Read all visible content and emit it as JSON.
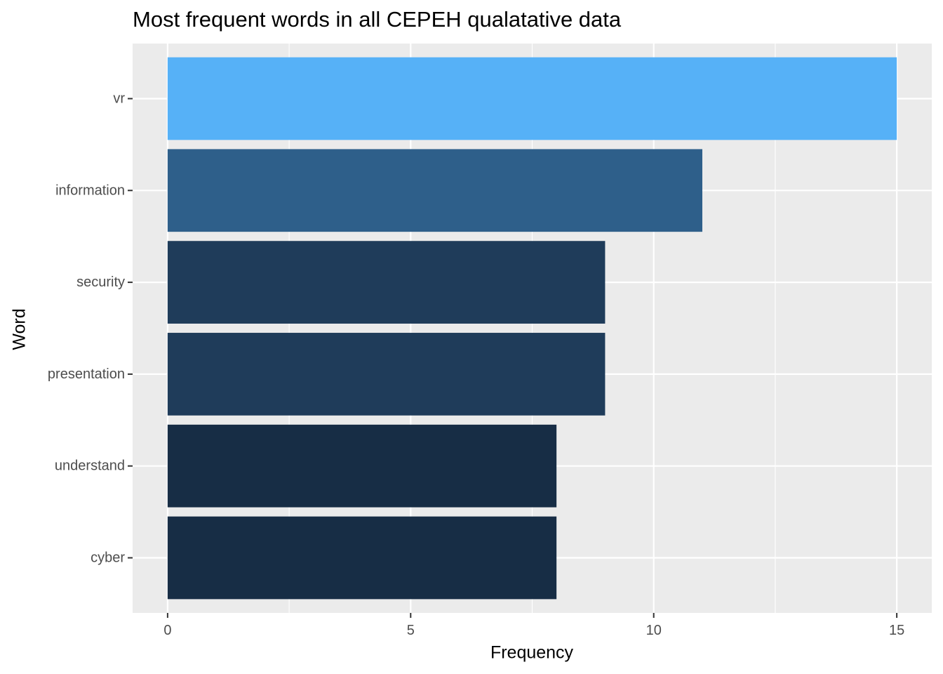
{
  "chart_data": {
    "type": "bar",
    "orientation": "horizontal",
    "title": "Most frequent words in all CEPEH qualatative data",
    "xlabel": "Frequency",
    "ylabel": "Word",
    "categories": [
      "vr",
      "information",
      "security",
      "presentation",
      "understand",
      "cyber"
    ],
    "values": [
      15,
      11,
      9,
      9,
      8,
      8
    ],
    "colors": [
      "#56B1F7",
      "#2E5F8A",
      "#1F3C5A",
      "#1F3C5A",
      "#172D45",
      "#172D45"
    ],
    "xlim": [
      -0.72,
      15.72
    ],
    "xticks": [
      0,
      5,
      10,
      15
    ],
    "xtick_labels": [
      "0",
      "5",
      "10",
      "15"
    ],
    "grid": true,
    "panel_background": "#EBEBEB",
    "gridline_color": "#FFFFFF"
  }
}
